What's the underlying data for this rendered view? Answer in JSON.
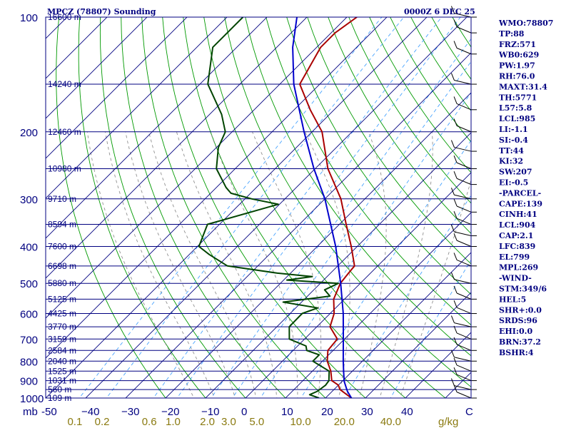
{
  "header": {
    "title": "MPCZ (78807) Sounding",
    "time": "0000Z  6 DEC 25"
  },
  "chart_data": {
    "type": "skew-t",
    "pressure_levels": [
      100,
      200,
      300,
      400,
      500,
      600,
      700,
      800,
      900,
      1000
    ],
    "pressure_unit_label": "mb",
    "height_labels": [
      {
        "p": 100,
        "text": "16600 m"
      },
      {
        "p": 150,
        "text": "14240 m"
      },
      {
        "p": 200,
        "text": "12460 m"
      },
      {
        "p": 250,
        "text": "10980 m"
      },
      {
        "p": 300,
        "text": "9710 m"
      },
      {
        "p": 350,
        "text": "8594 m"
      },
      {
        "p": 400,
        "text": "7600 m"
      },
      {
        "p": 450,
        "text": "6698 m"
      },
      {
        "p": 500,
        "text": "5880 m"
      },
      {
        "p": 550,
        "text": "5125 m"
      },
      {
        "p": 600,
        "text": "4425 m"
      },
      {
        "p": 650,
        "text": "3770 m"
      },
      {
        "p": 700,
        "text": "3159 m"
      },
      {
        "p": 750,
        "text": "2584 m"
      },
      {
        "p": 800,
        "text": "2040 m"
      },
      {
        "p": 850,
        "text": "1525 m"
      },
      {
        "p": 900,
        "text": "1031 m"
      },
      {
        "p": 950,
        "text": "560 m"
      },
      {
        "p": 1000,
        "text": "109 m"
      }
    ],
    "temperature_ticks": [
      -50,
      -40,
      -30,
      -20,
      -10,
      0,
      10,
      20,
      30,
      40
    ],
    "temperature_tick_labels": [
      "-50",
      "−40",
      "−30",
      "−20",
      "−10",
      "0",
      "10",
      "20",
      "30",
      "40"
    ],
    "mixing_ratio_ticks": [
      0.1,
      0.2,
      0.6,
      1.0,
      2.0,
      3.0,
      5.0,
      10.0,
      20.0,
      40.0
    ],
    "mixing_ratio_labels": [
      "0.1",
      "0.2",
      "0.6",
      "1.0",
      "2.0",
      "3.0",
      "5.0",
      "10.0",
      "20.0",
      "40.0"
    ],
    "mixing_ratio_unit": "g/kg",
    "x_end_label": "C",
    "series": [
      {
        "name": "Temperature",
        "color": "#aa0000",
        "points": [
          [
            1000,
            26.5
          ],
          [
            950,
            21.5
          ],
          [
            925,
            20
          ],
          [
            900,
            17.2
          ],
          [
            850,
            14.6
          ],
          [
            800,
            11.2
          ],
          [
            750,
            8.7
          ],
          [
            700,
            8.2
          ],
          [
            650,
            3.3
          ],
          [
            600,
            1.0
          ],
          [
            550,
            -2.7
          ],
          [
            500,
            -5.0
          ],
          [
            470,
            -5.5
          ],
          [
            450,
            -5.8
          ],
          [
            400,
            -11.5
          ],
          [
            350,
            -18.3
          ],
          [
            300,
            -26.0
          ],
          [
            250,
            -36.8
          ],
          [
            200,
            -47.5
          ],
          [
            175,
            -56.0
          ],
          [
            150,
            -65.0
          ],
          [
            120,
            -69.0
          ],
          [
            110,
            -69.0
          ],
          [
            100,
            -67.5
          ]
        ]
      },
      {
        "name": "Dewpoint",
        "color": "#004400",
        "points": [
          [
            1000,
            18.4
          ],
          [
            980,
            15.2
          ],
          [
            960,
            16.3
          ],
          [
            925,
            16.8
          ],
          [
            900,
            16.5
          ],
          [
            850,
            14.2
          ],
          [
            800,
            7.6
          ],
          [
            770,
            7.6
          ],
          [
            750,
            3.4
          ],
          [
            730,
            2.1
          ],
          [
            700,
            -3.8
          ],
          [
            650,
            -6.9
          ],
          [
            600,
            -7.0
          ],
          [
            580,
            -4.5
          ],
          [
            560,
            -14.6
          ],
          [
            540,
            -4.4
          ],
          [
            520,
            -7.3
          ],
          [
            500,
            -5.5
          ],
          [
            490,
            -19.2
          ],
          [
            480,
            -13.7
          ],
          [
            470,
            -23.3
          ],
          [
            450,
            -37.6
          ],
          [
            420,
            -45.0
          ],
          [
            400,
            -49.6
          ],
          [
            350,
            -53.0
          ],
          [
            310,
            -40.3
          ],
          [
            300,
            -48.3
          ],
          [
            290,
            -54.9
          ],
          [
            280,
            -57.6
          ],
          [
            250,
            -64.7
          ],
          [
            220,
            -69.5
          ],
          [
            200,
            -71.7
          ],
          [
            180,
            -77.0
          ],
          [
            150,
            -88.0
          ],
          [
            120,
            -96.0
          ],
          [
            100,
            -96.0
          ]
        ]
      },
      {
        "name": "Parcel",
        "color": "#0000cc",
        "points": [
          [
            1000,
            26.5
          ],
          [
            960,
            23.8
          ],
          [
            904,
            20.5
          ],
          [
            850,
            17.8
          ],
          [
            800,
            15.2
          ],
          [
            700,
            9.7
          ],
          [
            600,
            3.3
          ],
          [
            500,
            -4.9
          ],
          [
            400,
            -15.4
          ],
          [
            300,
            -30.0
          ],
          [
            250,
            -40.3
          ],
          [
            200,
            -52.0
          ],
          [
            150,
            -66.5
          ],
          [
            120,
            -76.0
          ],
          [
            100,
            -82.5
          ]
        ]
      }
    ],
    "wind_barbs_pressure": [
      100,
      110,
      125,
      150,
      175,
      200,
      225,
      250,
      275,
      300,
      325,
      350,
      375,
      400,
      450,
      500,
      550,
      600,
      650,
      700,
      750,
      800,
      850,
      900,
      950,
      1000
    ],
    "indices": [
      "WMO:78807",
      "TP:88",
      "FRZ:571",
      "WB0:629",
      "PW:1.97",
      "RH:76.0",
      "MAXT:31.4",
      "TH:5771",
      "L57:5.8",
      "LCL:985",
      "LI:-1.1",
      "SI:-0.4",
      "TT:44",
      "KI:32",
      "SW:207",
      "EI:-0.5",
      "-PARCEL-",
      "CAPE:139",
      "CINH:41",
      "LCL:904",
      "CAP:2.1",
      "LFC:839",
      "EL:799",
      "MPL:269",
      "-WIND-",
      "STM:349/6",
      "HEL:5",
      "SHR+:0.0",
      "SRDS:96",
      "EHI:0.0",
      "BRN:37.2",
      "BSHR:4"
    ],
    "colors": {
      "frame": "#000080",
      "isobar": "#000080",
      "isotherm": "#000080",
      "dry_adiabat": "#009900",
      "moist_adiabat": "#909090",
      "mixing_ratio": "#3399ff",
      "wind_barb": "#000000",
      "index_text": "#000080",
      "mixing_text": "#8a7a10"
    }
  }
}
